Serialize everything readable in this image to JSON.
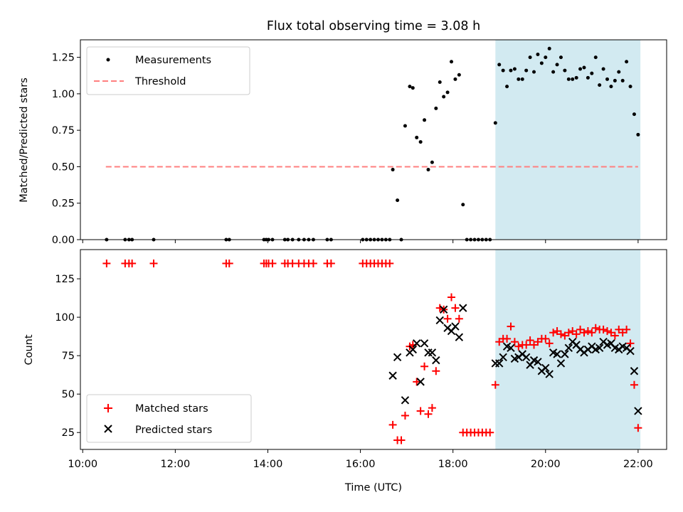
{
  "chart_data": [
    {
      "type": "scatter",
      "title": "Flux total observing time = 3.08 h",
      "xlabel": "",
      "ylabel": "Matched/Predicted stars",
      "ylim": [
        0,
        1.37
      ],
      "yticks": [
        0.0,
        0.25,
        0.5,
        0.75,
        1.0,
        1.25
      ],
      "ytick_labels": [
        "0.00",
        "0.25",
        "0.50",
        "0.75",
        "1.00",
        "1.25"
      ],
      "legend": {
        "placement": "top-left",
        "entries": [
          "Measurements",
          "Threshold"
        ]
      },
      "highlight_span": {
        "x": [
          "18:55",
          "22:03"
        ],
        "color": "#add8e6"
      },
      "threshold": {
        "name": "Threshold",
        "value": 0.5,
        "x": [
          "10:30",
          "22:00"
        ],
        "color": "#ff7f7f"
      },
      "series": [
        {
          "name": "Measurements",
          "color": "#000000",
          "points": [
            [
              "10:31",
              0
            ],
            [
              "10:55",
              0
            ],
            [
              "11:00",
              0
            ],
            [
              "11:04",
              0
            ],
            [
              "11:32",
              0
            ],
            [
              "13:06",
              0
            ],
            [
              "13:10",
              0
            ],
            [
              "13:55",
              0
            ],
            [
              "13:58",
              0
            ],
            [
              "14:01",
              0
            ],
            [
              "14:06",
              0
            ],
            [
              "14:22",
              0
            ],
            [
              "14:26",
              0
            ],
            [
              "14:32",
              0
            ],
            [
              "14:40",
              0
            ],
            [
              "14:47",
              0
            ],
            [
              "14:53",
              0
            ],
            [
              "14:59",
              0
            ],
            [
              "15:17",
              0
            ],
            [
              "15:22",
              0
            ],
            [
              "16:03",
              0
            ],
            [
              "16:08",
              0
            ],
            [
              "16:13",
              0
            ],
            [
              "16:18",
              0
            ],
            [
              "16:23",
              0
            ],
            [
              "16:28",
              0
            ],
            [
              "16:33",
              0
            ],
            [
              "16:38",
              0
            ],
            [
              "16:42",
              0.48
            ],
            [
              "16:48",
              0.27
            ],
            [
              "16:53",
              0
            ],
            [
              "16:58",
              0.78
            ],
            [
              "17:04",
              1.05
            ],
            [
              "17:08",
              1.04
            ],
            [
              "17:13",
              0.7
            ],
            [
              "17:18",
              0.67
            ],
            [
              "17:23",
              0.82
            ],
            [
              "17:28",
              0.48
            ],
            [
              "17:33",
              0.53
            ],
            [
              "17:38",
              0.9
            ],
            [
              "17:43",
              1.08
            ],
            [
              "17:48",
              0.98
            ],
            [
              "17:53",
              1.01
            ],
            [
              "17:58",
              1.22
            ],
            [
              "18:03",
              1.1
            ],
            [
              "18:08",
              1.13
            ],
            [
              "18:13",
              0.24
            ],
            [
              "18:18",
              0
            ],
            [
              "18:23",
              0
            ],
            [
              "18:28",
              0
            ],
            [
              "18:33",
              0
            ],
            [
              "18:38",
              0
            ],
            [
              "18:43",
              0
            ],
            [
              "18:48",
              0
            ],
            [
              "18:55",
              0.8
            ],
            [
              "19:00",
              1.2
            ],
            [
              "19:05",
              1.16
            ],
            [
              "19:10",
              1.05
            ],
            [
              "19:15",
              1.16
            ],
            [
              "19:20",
              1.17
            ],
            [
              "19:25",
              1.1
            ],
            [
              "19:30",
              1.1
            ],
            [
              "19:35",
              1.16
            ],
            [
              "19:40",
              1.25
            ],
            [
              "19:45",
              1.15
            ],
            [
              "19:50",
              1.27
            ],
            [
              "19:55",
              1.21
            ],
            [
              "20:00",
              1.25
            ],
            [
              "20:05",
              1.31
            ],
            [
              "20:10",
              1.15
            ],
            [
              "20:15",
              1.2
            ],
            [
              "20:20",
              1.25
            ],
            [
              "20:25",
              1.16
            ],
            [
              "20:30",
              1.1
            ],
            [
              "20:35",
              1.1
            ],
            [
              "20:40",
              1.11
            ],
            [
              "20:45",
              1.17
            ],
            [
              "20:50",
              1.18
            ],
            [
              "20:55",
              1.11
            ],
            [
              "21:00",
              1.14
            ],
            [
              "21:05",
              1.25
            ],
            [
              "21:10",
              1.06
            ],
            [
              "21:15",
              1.17
            ],
            [
              "21:20",
              1.1
            ],
            [
              "21:25",
              1.05
            ],
            [
              "21:30",
              1.09
            ],
            [
              "21:35",
              1.15
            ],
            [
              "21:40",
              1.09
            ],
            [
              "21:45",
              1.22
            ],
            [
              "21:50",
              1.05
            ],
            [
              "21:55",
              0.86
            ],
            [
              "22:00",
              0.72
            ]
          ]
        }
      ]
    },
    {
      "type": "scatter",
      "title": "",
      "xlabel": "Time (UTC)",
      "ylabel": "Count",
      "ylim": [
        14,
        144
      ],
      "yticks": [
        25,
        50,
        75,
        100,
        125
      ],
      "ytick_labels": [
        "25",
        "50",
        "75",
        "100",
        "125"
      ],
      "xticks": [
        "10:00",
        "12:00",
        "14:00",
        "16:00",
        "18:00",
        "20:00",
        "22:00"
      ],
      "xlim": [
        "09:57",
        "22:37"
      ],
      "legend": {
        "placement": "bottom-left",
        "entries": [
          "Matched stars",
          "Predicted stars"
        ]
      },
      "highlight_span": {
        "x": [
          "18:55",
          "22:03"
        ],
        "color": "#add8e6"
      },
      "series": [
        {
          "name": "Matched stars",
          "marker": "+",
          "color": "#ff0000",
          "points": [
            [
              "10:31",
              135
            ],
            [
              "10:55",
              135
            ],
            [
              "11:00",
              135
            ],
            [
              "11:04",
              135
            ],
            [
              "11:32",
              135
            ],
            [
              "13:06",
              135
            ],
            [
              "13:10",
              135
            ],
            [
              "13:55",
              135
            ],
            [
              "13:58",
              135
            ],
            [
              "14:01",
              135
            ],
            [
              "14:06",
              135
            ],
            [
              "14:22",
              135
            ],
            [
              "14:26",
              135
            ],
            [
              "14:32",
              135
            ],
            [
              "14:40",
              135
            ],
            [
              "14:47",
              135
            ],
            [
              "14:53",
              135
            ],
            [
              "14:59",
              135
            ],
            [
              "15:17",
              135
            ],
            [
              "15:22",
              135
            ],
            [
              "16:03",
              135
            ],
            [
              "16:08",
              135
            ],
            [
              "16:13",
              135
            ],
            [
              "16:18",
              135
            ],
            [
              "16:23",
              135
            ],
            [
              "16:28",
              135
            ],
            [
              "16:33",
              135
            ],
            [
              "16:38",
              135
            ],
            [
              "16:42",
              30
            ],
            [
              "16:48",
              20
            ],
            [
              "16:53",
              20
            ],
            [
              "16:58",
              36
            ],
            [
              "17:04",
              81
            ],
            [
              "17:08",
              82
            ],
            [
              "17:13",
              58
            ],
            [
              "17:18",
              39
            ],
            [
              "17:23",
              68
            ],
            [
              "17:28",
              37
            ],
            [
              "17:33",
              41
            ],
            [
              "17:38",
              65
            ],
            [
              "17:43",
              106
            ],
            [
              "17:48",
              105
            ],
            [
              "17:53",
              99
            ],
            [
              "17:58",
              113
            ],
            [
              "18:03",
              106
            ],
            [
              "18:08",
              99
            ],
            [
              "18:13",
              25
            ],
            [
              "18:18",
              25
            ],
            [
              "18:23",
              25
            ],
            [
              "18:28",
              25
            ],
            [
              "18:33",
              25
            ],
            [
              "18:38",
              25
            ],
            [
              "18:43",
              25
            ],
            [
              "18:48",
              25
            ],
            [
              "18:55",
              56
            ],
            [
              "19:00",
              84
            ],
            [
              "19:05",
              86
            ],
            [
              "19:10",
              86
            ],
            [
              "19:15",
              94
            ],
            [
              "19:20",
              84
            ],
            [
              "19:25",
              81
            ],
            [
              "19:30",
              82
            ],
            [
              "19:35",
              82
            ],
            [
              "19:40",
              85
            ],
            [
              "19:45",
              82
            ],
            [
              "19:50",
              84
            ],
            [
              "19:55",
              86
            ],
            [
              "20:00",
              86
            ],
            [
              "20:05",
              83
            ],
            [
              "20:10",
              90
            ],
            [
              "20:15",
              91
            ],
            [
              "20:20",
              89
            ],
            [
              "20:25",
              88
            ],
            [
              "20:30",
              90
            ],
            [
              "20:35",
              91
            ],
            [
              "20:40",
              89
            ],
            [
              "20:45",
              92
            ],
            [
              "20:50",
              90
            ],
            [
              "20:55",
              91
            ],
            [
              "21:00",
              90
            ],
            [
              "21:05",
              93
            ],
            [
              "21:10",
              92
            ],
            [
              "21:15",
              92
            ],
            [
              "21:20",
              91
            ],
            [
              "21:25",
              90
            ],
            [
              "21:30",
              88
            ],
            [
              "21:35",
              92
            ],
            [
              "21:40",
              90
            ],
            [
              "21:45",
              92
            ],
            [
              "21:50",
              83
            ],
            [
              "21:55",
              56
            ],
            [
              "22:00",
              28
            ]
          ]
        },
        {
          "name": "Predicted stars",
          "marker": "x",
          "color": "#000000",
          "points": [
            [
              "16:42",
              62
            ],
            [
              "16:48",
              74
            ],
            [
              "16:58",
              46
            ],
            [
              "17:04",
              77
            ],
            [
              "17:08",
              79
            ],
            [
              "17:13",
              83
            ],
            [
              "17:18",
              58
            ],
            [
              "17:23",
              83
            ],
            [
              "17:28",
              77
            ],
            [
              "17:33",
              77
            ],
            [
              "17:38",
              72
            ],
            [
              "17:43",
              98
            ],
            [
              "17:48",
              105
            ],
            [
              "17:53",
              93
            ],
            [
              "17:58",
              91
            ],
            [
              "18:03",
              94
            ],
            [
              "18:08",
              87
            ],
            [
              "18:13",
              106
            ],
            [
              "18:55",
              70
            ],
            [
              "19:00",
              70
            ],
            [
              "19:05",
              74
            ],
            [
              "19:10",
              81
            ],
            [
              "19:15",
              80
            ],
            [
              "19:20",
              73
            ],
            [
              "19:25",
              74
            ],
            [
              "19:30",
              76
            ],
            [
              "19:35",
              74
            ],
            [
              "19:40",
              69
            ],
            [
              "19:45",
              72
            ],
            [
              "19:50",
              71
            ],
            [
              "19:55",
              65
            ],
            [
              "20:00",
              67
            ],
            [
              "20:05",
              63
            ],
            [
              "20:10",
              77
            ],
            [
              "20:15",
              76
            ],
            [
              "20:20",
              70
            ],
            [
              "20:25",
              76
            ],
            [
              "20:30",
              80
            ],
            [
              "20:35",
              84
            ],
            [
              "20:40",
              82
            ],
            [
              "20:45",
              79
            ],
            [
              "20:50",
              77
            ],
            [
              "20:55",
              79
            ],
            [
              "21:00",
              81
            ],
            [
              "21:05",
              79
            ],
            [
              "21:10",
              80
            ],
            [
              "21:15",
              84
            ],
            [
              "21:20",
              82
            ],
            [
              "21:25",
              83
            ],
            [
              "21:30",
              80
            ],
            [
              "21:35",
              79
            ],
            [
              "21:40",
              81
            ],
            [
              "21:45",
              80
            ],
            [
              "21:50",
              78
            ],
            [
              "21:55",
              65
            ],
            [
              "22:00",
              39
            ]
          ]
        }
      ]
    }
  ]
}
